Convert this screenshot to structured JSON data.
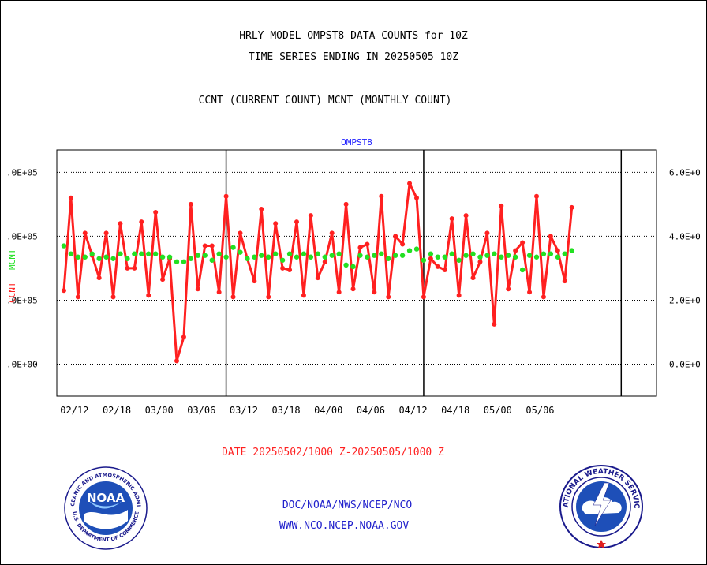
{
  "header": {
    "line1": "HRLY MODEL OMPST8 DATA COUNTS for 10Z",
    "line2": "TIME SERIES ENDING IN 20250505 10Z",
    "line3": "CCNT (CURRENT COUNT) MCNT (MONTHLY COUNT)"
  },
  "colors": {
    "ccnt": "#ff2020",
    "mcnt": "#22e022",
    "panel_label": "#2020ff",
    "date_range": "#ff2020",
    "footer": "#2020cc"
  },
  "chart_data": {
    "type": "line",
    "panel_label": "OMPST8",
    "left_axis_label_ccnt": "CCNT",
    "left_axis_label_mcnt": "MCNT",
    "ylim": [
      -100000,
      670000
    ],
    "left_ticks": [
      {
        "value": 0,
        "label": ".0E+00"
      },
      {
        "value": 200000,
        "label": ".0E+05"
      },
      {
        "value": 400000,
        "label": ".0E+05"
      },
      {
        "value": 600000,
        "label": ".0E+05"
      }
    ],
    "right_ticks": [
      {
        "value": 0,
        "label": "0.0E+0"
      },
      {
        "value": 200000,
        "label": "2.0E+0"
      },
      {
        "value": 400000,
        "label": "4.0E+0"
      },
      {
        "value": 600000,
        "label": "6.0E+0"
      }
    ],
    "x_range": [
      -1,
      84
    ],
    "x_tick_labels": [
      {
        "x": 1.5,
        "label": "02/12"
      },
      {
        "x": 7.5,
        "label": "02/18"
      },
      {
        "x": 13.5,
        "label": "03/00"
      },
      {
        "x": 19.5,
        "label": "03/06"
      },
      {
        "x": 25.5,
        "label": "03/12"
      },
      {
        "x": 31.5,
        "label": "03/18"
      },
      {
        "x": 37.5,
        "label": "04/00"
      },
      {
        "x": 43.5,
        "label": "04/06"
      },
      {
        "x": 49.5,
        "label": "04/12"
      },
      {
        "x": 55.5,
        "label": "04/18"
      },
      {
        "x": 61.5,
        "label": "05/00"
      },
      {
        "x": 67.5,
        "label": "05/06"
      }
    ],
    "day_separators": [
      23,
      51,
      79
    ],
    "series": [
      {
        "name": "CCNT",
        "values": [
          230000,
          520000,
          210000,
          410000,
          340000,
          270000,
          410000,
          210000,
          440000,
          300000,
          300000,
          445000,
          215000,
          475000,
          265000,
          330000,
          10000,
          85000,
          500000,
          235000,
          370000,
          370000,
          225000,
          525000,
          210000,
          410000,
          330000,
          260000,
          485000,
          210000,
          440000,
          300000,
          295000,
          445000,
          215000,
          465000,
          270000,
          320000,
          410000,
          225000,
          500000,
          235000,
          365000,
          375000,
          225000,
          525000,
          210000,
          400000,
          375000,
          565000,
          520000,
          210000,
          330000,
          305000,
          295000,
          455000,
          215000,
          465000,
          270000,
          320000,
          410000,
          125000,
          495000,
          235000,
          355000,
          380000,
          225000,
          525000,
          210000,
          400000,
          355000,
          260000,
          490000
        ]
      },
      {
        "name": "MCNT",
        "values": [
          370000,
          345000,
          335000,
          335000,
          345000,
          330000,
          335000,
          330000,
          345000,
          330000,
          345000,
          345000,
          345000,
          345000,
          335000,
          335000,
          320000,
          320000,
          330000,
          340000,
          340000,
          325000,
          345000,
          335000,
          365000,
          350000,
          330000,
          335000,
          340000,
          335000,
          345000,
          325000,
          345000,
          335000,
          345000,
          335000,
          345000,
          335000,
          340000,
          345000,
          310000,
          305000,
          340000,
          335000,
          340000,
          345000,
          330000,
          340000,
          340000,
          355000,
          360000,
          325000,
          345000,
          335000,
          335000,
          345000,
          325000,
          340000,
          345000,
          335000,
          340000,
          345000,
          335000,
          340000,
          335000,
          295000,
          340000,
          335000,
          345000,
          345000,
          335000,
          345000,
          355000
        ]
      }
    ]
  },
  "footer": {
    "date_range": "DATE 20250502/1000 Z-20250505/1000 Z",
    "org_path": "DOC/NOAA/NWS/NCEP/NCO",
    "website": "WWW.NCO.NCEP.NOAA.GOV"
  },
  "logos": {
    "noaa_text": "NOAA",
    "noaa_ring_top": "NATIONAL OCEANIC AND ATMOSPHERIC ADMINISTRATION",
    "noaa_ring_bottom": "U.S. DEPARTMENT OF COMMERCE",
    "nws_ring_text": "NATIONAL WEATHER SERVICE"
  }
}
